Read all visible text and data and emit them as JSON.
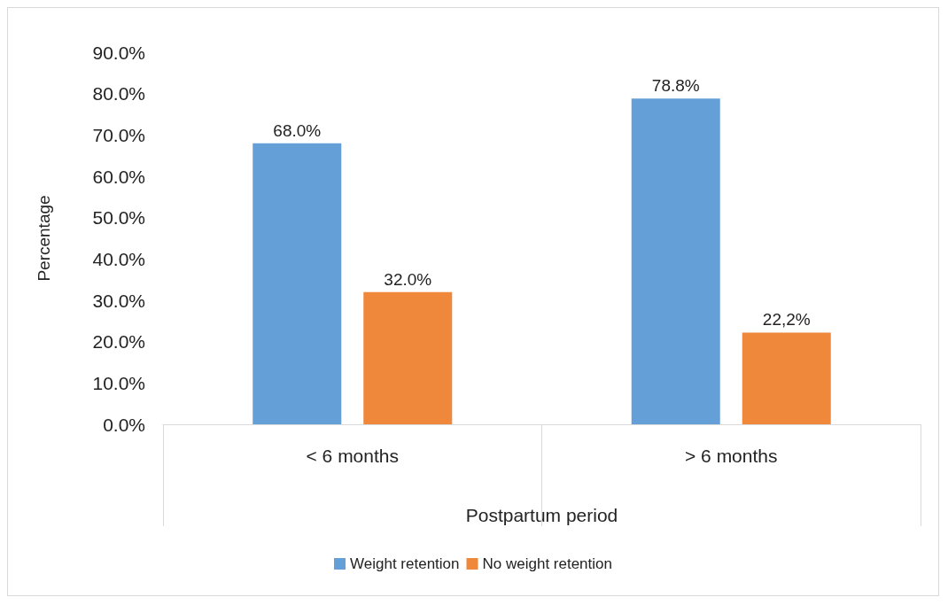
{
  "chart_data": {
    "type": "bar",
    "xlabel": "Postpartum period",
    "ylabel": "Percentage",
    "categories": [
      "< 6 months",
      "> 6 months"
    ],
    "series": [
      {
        "name": "Weight retention",
        "color": "#659fd7",
        "values": [
          68.0,
          78.8
        ],
        "value_labels": [
          "68.0%",
          "78.8%"
        ]
      },
      {
        "name": "No weight retention",
        "color": "#ef883a",
        "values": [
          32.0,
          22.2
        ],
        "value_labels": [
          "32.0%",
          "22,2%"
        ]
      }
    ],
    "ylim": [
      0,
      90
    ],
    "yticks": [
      {
        "value": 0,
        "label": "0.0%"
      },
      {
        "value": 10,
        "label": "10.0%"
      },
      {
        "value": 20,
        "label": "20.0%"
      },
      {
        "value": 30,
        "label": "30.0%"
      },
      {
        "value": 40,
        "label": "40.0%"
      },
      {
        "value": 50,
        "label": "50.0%"
      },
      {
        "value": 60,
        "label": "60.0%"
      },
      {
        "value": 70,
        "label": "70.0%"
      },
      {
        "value": 80,
        "label": "80.0%"
      },
      {
        "value": 90,
        "label": "90.0%"
      }
    ],
    "grid": false,
    "legend": "bottom"
  }
}
